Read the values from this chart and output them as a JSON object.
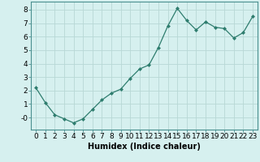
{
  "x": [
    0,
    1,
    2,
    3,
    4,
    5,
    6,
    7,
    8,
    9,
    10,
    11,
    12,
    13,
    14,
    15,
    16,
    17,
    18,
    19,
    20,
    21,
    22,
    23
  ],
  "y": [
    2.2,
    1.1,
    0.2,
    -0.1,
    -0.4,
    -0.1,
    0.6,
    1.3,
    1.8,
    2.1,
    2.9,
    3.6,
    3.9,
    5.2,
    6.8,
    8.1,
    7.2,
    6.5,
    7.1,
    6.7,
    6.6,
    5.9,
    6.3,
    7.5
  ],
  "line_color": "#2e7d6e",
  "marker": "D",
  "marker_size": 2.0,
  "bg_color": "#d6f0ef",
  "grid_color": "#b8d8d5",
  "xlabel": "Humidex (Indice chaleur)",
  "ylim": [
    -0.9,
    8.6
  ],
  "xlim": [
    -0.5,
    23.5
  ],
  "yticks": [
    0,
    1,
    2,
    3,
    4,
    5,
    6,
    7,
    8
  ],
  "ytick_labels": [
    "-0",
    "1",
    "2",
    "3",
    "4",
    "5",
    "6",
    "7",
    "8"
  ],
  "xtick_labels": [
    "0",
    "1",
    "2",
    "3",
    "4",
    "5",
    "6",
    "7",
    "8",
    "9",
    "10",
    "11",
    "12",
    "13",
    "14",
    "15",
    "16",
    "17",
    "18",
    "19",
    "20",
    "21",
    "22",
    "23"
  ],
  "xlabel_fontsize": 7,
  "tick_fontsize": 6.5,
  "spine_color": "#4a9090",
  "tick_color": "#4a9090"
}
